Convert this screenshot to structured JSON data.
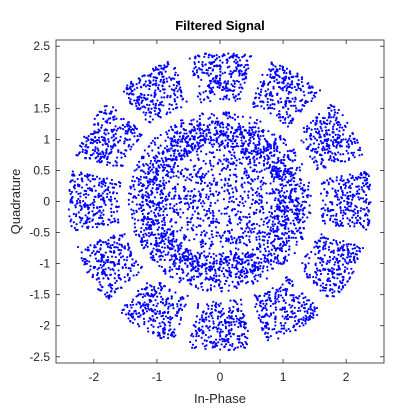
{
  "chart_data": {
    "type": "scatter",
    "title": "Filtered Signal",
    "xlabel": "In-Phase",
    "ylabel": "Quadrature",
    "xlim": [
      -2.6,
      2.6
    ],
    "ylim": [
      -2.6,
      2.6
    ],
    "xticks": [
      -2,
      -1,
      0,
      1,
      2
    ],
    "xtick_labels": [
      "-2",
      "-1",
      "0",
      "1",
      "2"
    ],
    "yticks": [
      -2.5,
      -2,
      -1.5,
      -1,
      -0.5,
      0,
      0.5,
      1,
      1.5,
      2,
      2.5
    ],
    "ytick_labels": [
      "-2.5",
      "-2",
      "-1.5",
      "-1",
      "-0.5",
      "0",
      "0.5",
      "1",
      "1.5",
      "2",
      "2.5"
    ],
    "grid": false,
    "marker_color": "#0000ff",
    "structure": {
      "outer_ring": {
        "cluster_center_angles_deg": [
          0,
          30,
          60,
          90,
          120,
          150,
          180,
          210,
          240,
          270,
          300,
          330
        ],
        "cluster_radial_range": [
          1.6,
          2.4
        ],
        "cluster_angular_halfwidth_deg": 12
      },
      "inner_cloud": {
        "radial_range": [
          0.0,
          1.5
        ]
      }
    }
  }
}
